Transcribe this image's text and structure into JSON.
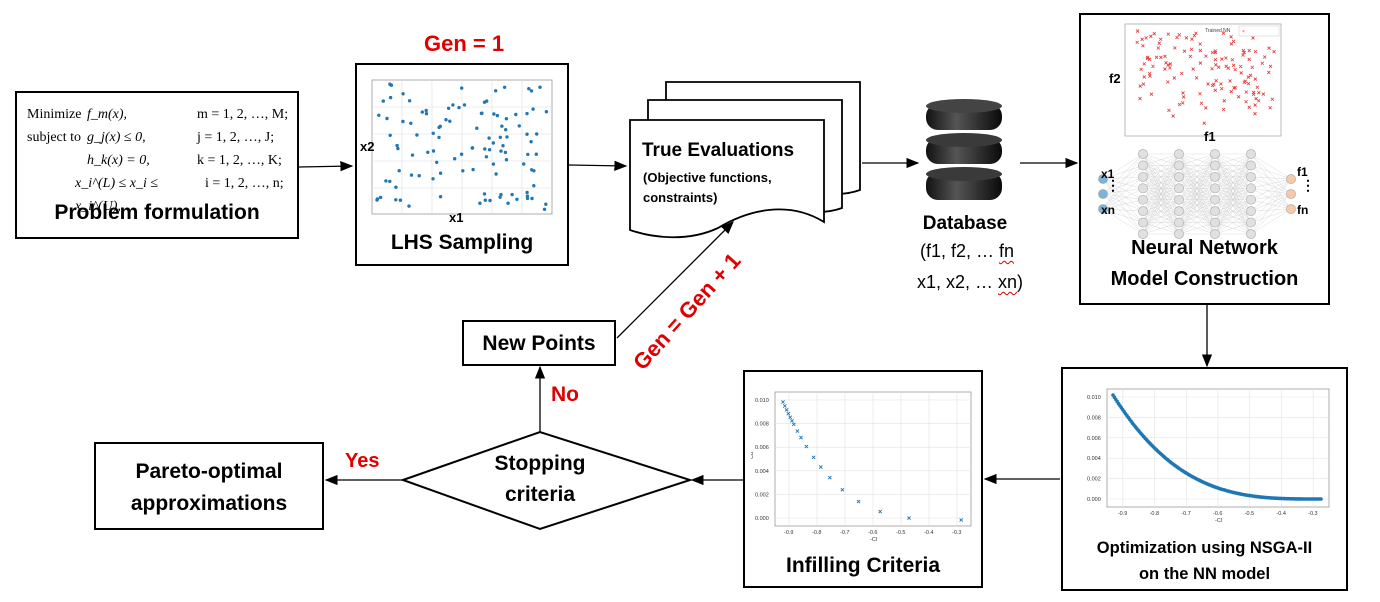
{
  "problem": {
    "lines": [
      {
        "a": "Minimize",
        "b": "f_m(x),",
        "c": "m = 1, 2, …, M;"
      },
      {
        "a": "subject to",
        "b": "g_j(x) ≤ 0,",
        "c": "j = 1, 2, …, J;"
      },
      {
        "a": "",
        "b": "h_k(x) = 0,",
        "c": "k = 1, 2, …, K;"
      },
      {
        "a": "",
        "b": "x_i^(L) ≤ x_i ≤ x_i^(U),",
        "c": "i = 1, 2, …, n;"
      }
    ],
    "title": "Problem formulation"
  },
  "lhs": {
    "gen_label": "Gen = 1",
    "title": "LHS Sampling",
    "xlabel": "x1",
    "ylabel": "x2"
  },
  "true_eval": {
    "title": "True Evaluations",
    "sub1": "(Objective functions,",
    "sub2": "constraints)"
  },
  "database": {
    "title": "Database",
    "line1": "(f1, f2, … fn",
    "line2": "x1, x2, … xn)"
  },
  "nn": {
    "title1": "Neural Network",
    "title2": "Model Construction",
    "legend": "Trained NN",
    "ylabel": "f2",
    "xlabel": "f1",
    "in_top": "x1",
    "in_bot": "xn",
    "out_top": "f1",
    "out_bot": "fn",
    "dots": "⋮"
  },
  "nsga": {
    "title1": "Optimization using NSGA-II",
    "title2": "on the NN model"
  },
  "infill": {
    "title": "Infilling Criteria"
  },
  "stopping": {
    "line1": "Stopping",
    "line2": "criteria"
  },
  "pareto": {
    "line1": "Pareto-optimal",
    "line2": "approximations"
  },
  "new_points": {
    "label": "New Points"
  },
  "labels": {
    "yes": "Yes",
    "no": "No",
    "gen_next": "Gen = Gen + 1"
  },
  "pareto_plot": {
    "x_ticks": [
      "-0.9",
      "-0.8",
      "-0.7",
      "-0.6",
      "-0.5",
      "-0.4",
      "-0.3"
    ],
    "y_ticks": [
      "0.000",
      "0.002",
      "0.004",
      "0.006",
      "0.008",
      "0.010"
    ],
    "xlabel": "-Cl",
    "ylabel": "Cd"
  },
  "colors": {
    "accent_red": "#e00000",
    "scatter_blue": "#1f77b4",
    "scatter_red": "#e23b3b"
  }
}
